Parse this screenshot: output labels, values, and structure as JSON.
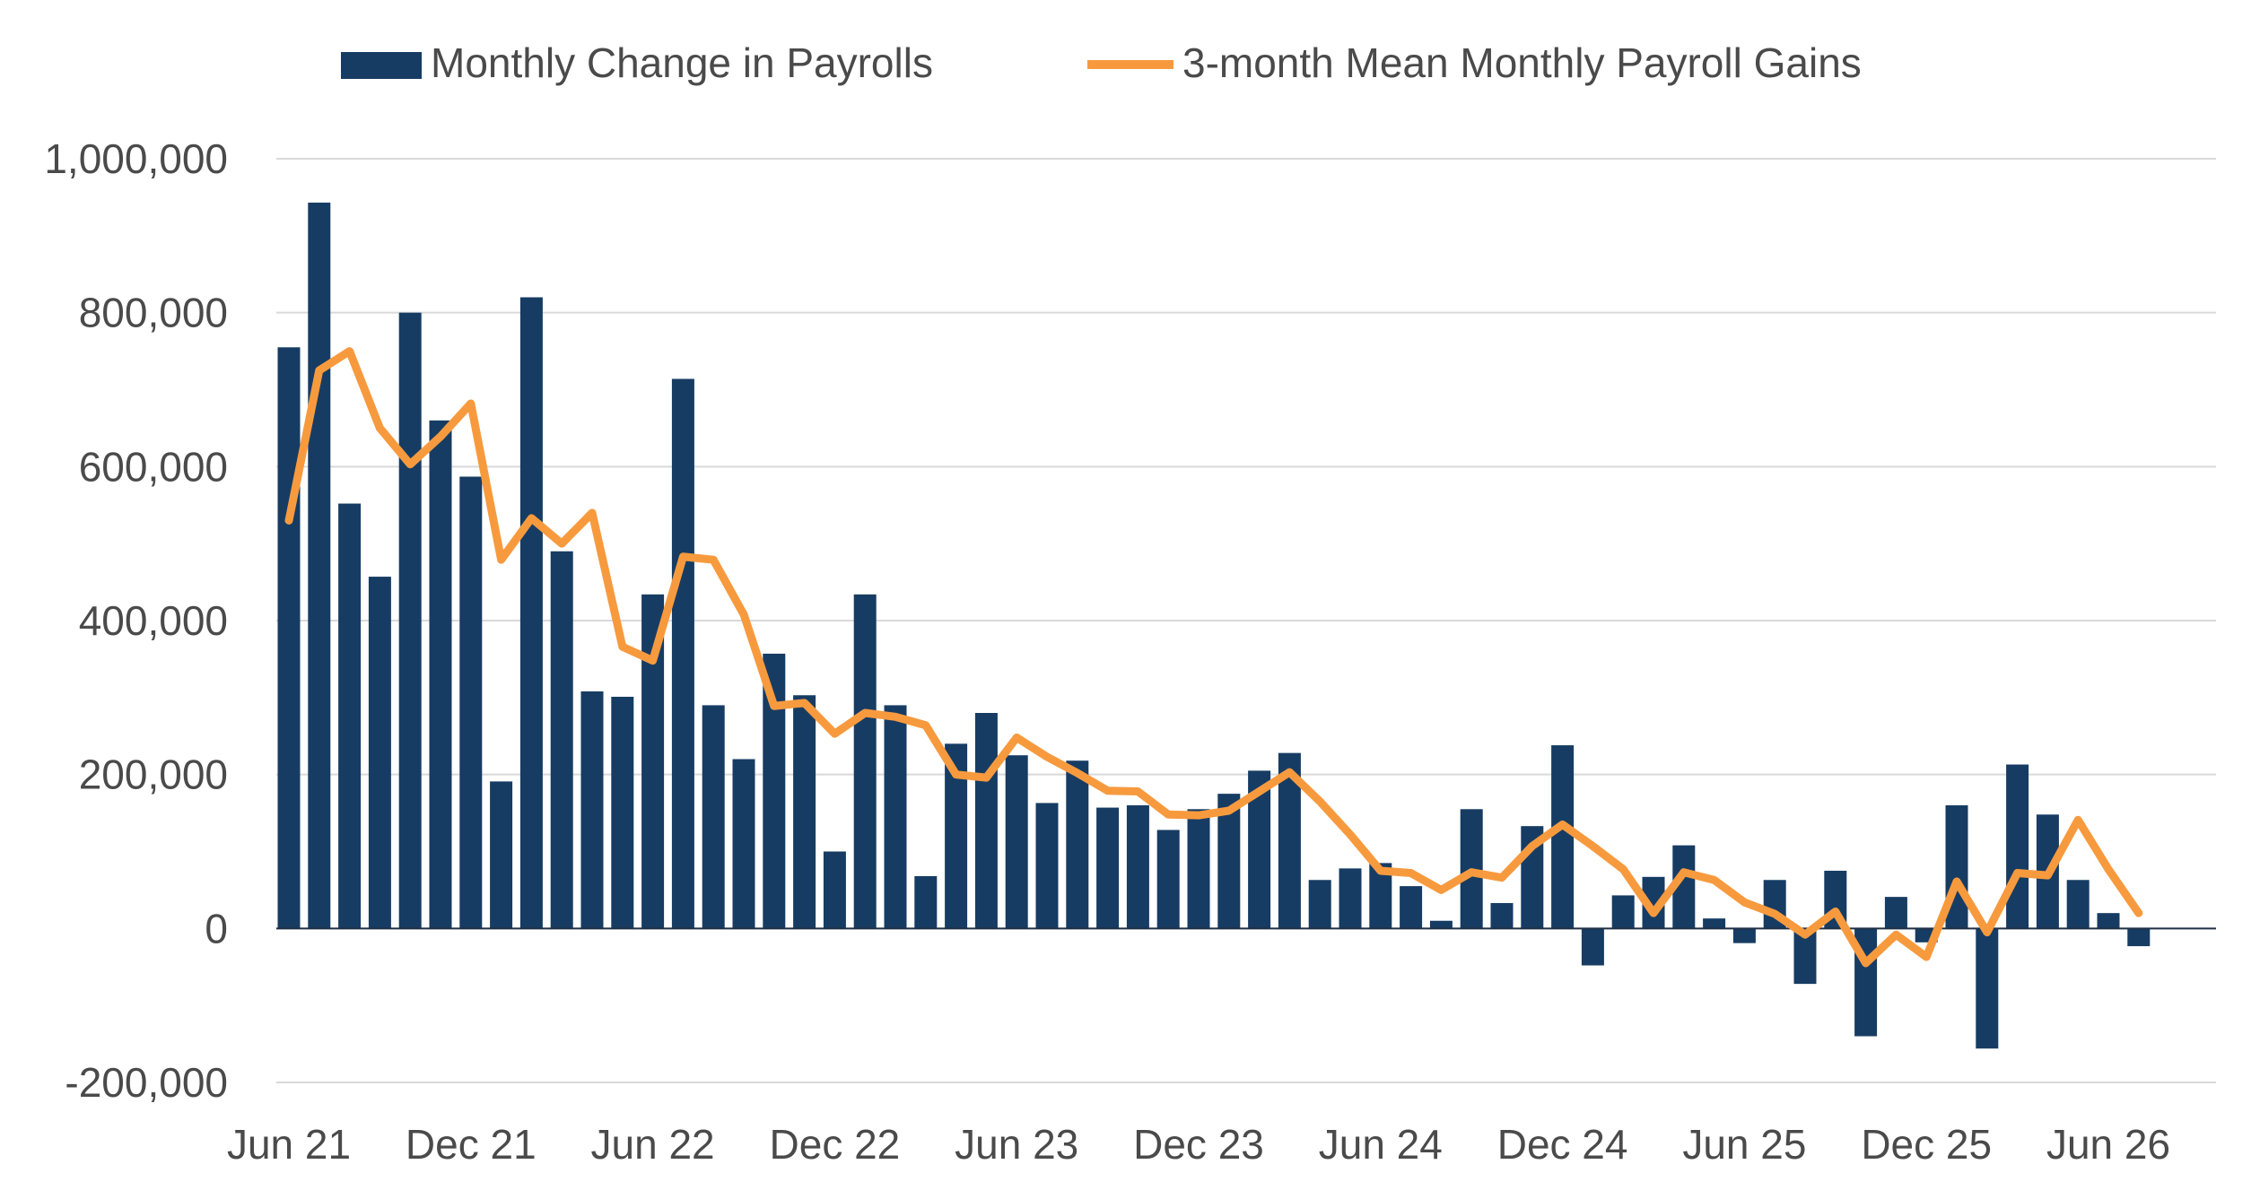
{
  "chart_data": {
    "type": "bar",
    "title": "",
    "xlabel": "",
    "ylabel": "",
    "ylim": [
      -200000,
      1000000
    ],
    "y_ticks": [
      -200000,
      0,
      200000,
      400000,
      600000,
      800000,
      1000000
    ],
    "y_tick_labels": [
      "-200,000",
      "0",
      "200,000",
      "400,000",
      "600,000",
      "800,000",
      "1,000,000"
    ],
    "x_tick_labels": [
      "Jun 21",
      "Dec 21",
      "Jun 22",
      "Dec 22",
      "Jun 23",
      "Dec 23",
      "Jun 24",
      "Dec 24",
      "Jun 25",
      "Dec 25",
      "Jun 26"
    ],
    "x_tick_index": [
      0,
      6,
      12,
      18,
      24,
      30,
      36,
      42,
      48,
      54,
      60
    ],
    "grid": true,
    "legend_position": "top",
    "categories": [
      "Jun 21",
      "Jul 21",
      "Aug 21",
      "Sep 21",
      "Oct 21",
      "Nov 21",
      "Dec 21",
      "Jan 22",
      "Feb 22",
      "Mar 22",
      "Apr 22",
      "May 22",
      "Jun 22",
      "Jul 22",
      "Aug 22",
      "Sep 22",
      "Oct 22",
      "Nov 22",
      "Dec 22",
      "Jan 23",
      "Feb 23",
      "Mar 23",
      "Apr 23",
      "May 23",
      "Jun 23",
      "Jul 23",
      "Aug 23",
      "Sep 23",
      "Oct 23",
      "Nov 23",
      "Dec 23",
      "Jan 24",
      "Feb 24",
      "Mar 24",
      "Apr 24",
      "May 24",
      "Jun 24",
      "Jul 24",
      "Aug 24",
      "Sep 24",
      "Oct 24",
      "Nov 24",
      "Dec 24",
      "Jan 25",
      "Feb 25",
      "Mar 25",
      "Apr 25",
      "May 25",
      "Jun 25",
      "Jul 25",
      "Aug 25",
      "Sep 25",
      "Oct 25",
      "Nov 25",
      "Dec 25",
      "Jan 26",
      "Feb 26",
      "Mar 26",
      "Apr 26",
      "May 26",
      "Jun 26",
      "Jul 26"
    ],
    "series": [
      {
        "name": "Monthly Change in Payrolls",
        "type": "bar",
        "color": "#173c63",
        "values": [
          755000,
          943000,
          552000,
          457000,
          800000,
          660000,
          587000,
          191000,
          820000,
          490000,
          308000,
          301000,
          434000,
          714000,
          290000,
          220000,
          357000,
          303000,
          100000,
          434000,
          290000,
          68000,
          240000,
          280000,
          225000,
          163000,
          218000,
          157000,
          160000,
          128000,
          155000,
          175000,
          205000,
          228000,
          63000,
          78000,
          85000,
          55000,
          10000,
          155000,
          33000,
          133000,
          238000,
          -48000,
          43000,
          67000,
          108000,
          13000,
          -19000,
          63000,
          -72000,
          75000,
          -140000,
          41000,
          -18000,
          160000,
          -156000,
          213000,
          148000,
          63000,
          20000,
          -23000
        ]
      },
      {
        "name": "3-month Mean Monthly Payroll Gains",
        "type": "line",
        "color": "#f79a3e",
        "values": [
          530000,
          725000,
          750000,
          650000,
          603000,
          639000,
          682000,
          479000,
          533000,
          500000,
          540000,
          366000,
          348000,
          483000,
          479000,
          408000,
          289000,
          293000,
          253000,
          280000,
          275000,
          264000,
          200000,
          196000,
          248000,
          223000,
          202000,
          179000,
          178000,
          148000,
          147000,
          153000,
          178000,
          203000,
          165000,
          122000,
          75000,
          72000,
          50000,
          73000,
          66000,
          107000,
          135000,
          107000,
          77000,
          20000,
          73000,
          63000,
          34000,
          19000,
          -8000,
          22000,
          -45000,
          -8000,
          -37000,
          61000,
          -5000,
          72000,
          69000,
          141000,
          77000,
          20000
        ]
      }
    ]
  }
}
